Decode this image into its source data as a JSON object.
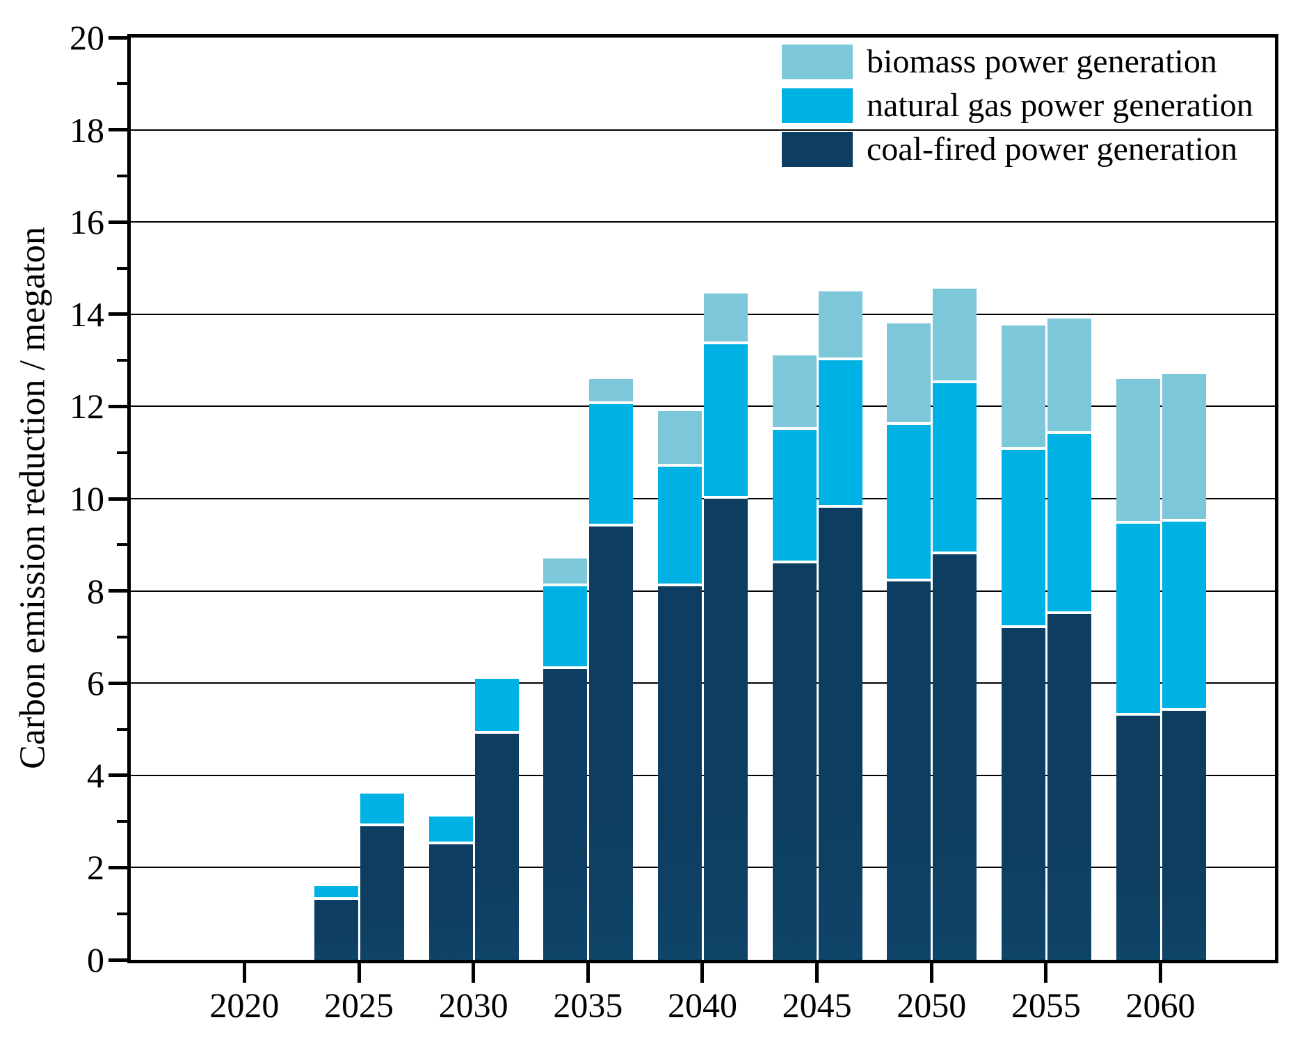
{
  "chart_data": {
    "type": "bar",
    "subtype": "stacked-paired-columns",
    "title": "",
    "xlabel": "",
    "ylabel": "Carbon emission reduction / megaton",
    "ylim": [
      0,
      20
    ],
    "ytick_step": 2,
    "y_tick_labels": [
      "0",
      "2",
      "4",
      "6",
      "8",
      "10",
      "12",
      "14",
      "16",
      "18",
      "20"
    ],
    "x_tick_labels": [
      "2020",
      "2025",
      "2030",
      "2035",
      "2040",
      "2045",
      "2050",
      "2055",
      "2060"
    ],
    "grid": "horizontal",
    "legend_position": "top-right-inside",
    "stack_order_bottom_to_top": [
      "coal",
      "gas",
      "biomass"
    ],
    "legend": [
      {
        "key": "biomass",
        "label": "biomass power generation",
        "color": "#7cc7da"
      },
      {
        "key": "gas",
        "label": "natural gas power generation",
        "color": "#00b2e3"
      },
      {
        "key": "coal",
        "label": "coal-fired power generation",
        "color": "#0d3d60"
      }
    ],
    "groups": [
      {
        "year": 2020,
        "bars": []
      },
      {
        "year": 2025,
        "bars": [
          {
            "coal": 1.3,
            "gas": 0.3,
            "biomass": 0
          },
          {
            "coal": 2.9,
            "gas": 0.7,
            "biomass": 0
          }
        ]
      },
      {
        "year": 2030,
        "bars": [
          {
            "coal": 2.5,
            "gas": 0.6,
            "biomass": 0
          },
          {
            "coal": 4.9,
            "gas": 1.2,
            "biomass": 0
          }
        ]
      },
      {
        "year": 2035,
        "bars": [
          {
            "coal": 6.3,
            "gas": 1.8,
            "biomass": 0.6
          },
          {
            "coal": 9.4,
            "gas": 2.65,
            "biomass": 0.55
          }
        ]
      },
      {
        "year": 2040,
        "bars": [
          {
            "coal": 8.1,
            "gas": 2.6,
            "biomass": 1.2
          },
          {
            "coal": 10.0,
            "gas": 3.35,
            "biomass": 1.1
          }
        ]
      },
      {
        "year": 2045,
        "bars": [
          {
            "coal": 8.6,
            "gas": 2.9,
            "biomass": 1.6
          },
          {
            "coal": 9.8,
            "gas": 3.2,
            "biomass": 1.5
          }
        ]
      },
      {
        "year": 2050,
        "bars": [
          {
            "coal": 8.2,
            "gas": 3.4,
            "biomass": 2.2
          },
          {
            "coal": 8.8,
            "gas": 3.7,
            "biomass": 2.05
          }
        ]
      },
      {
        "year": 2055,
        "bars": [
          {
            "coal": 7.2,
            "gas": 3.85,
            "biomass": 2.7
          },
          {
            "coal": 7.5,
            "gas": 3.9,
            "biomass": 2.5
          }
        ]
      },
      {
        "year": 2060,
        "bars": [
          {
            "coal": 5.3,
            "gas": 4.15,
            "biomass": 3.15
          },
          {
            "coal": 5.4,
            "gas": 4.1,
            "biomass": 3.2
          }
        ]
      }
    ],
    "axis_color": "#000000",
    "background_color": "#ffffff"
  }
}
